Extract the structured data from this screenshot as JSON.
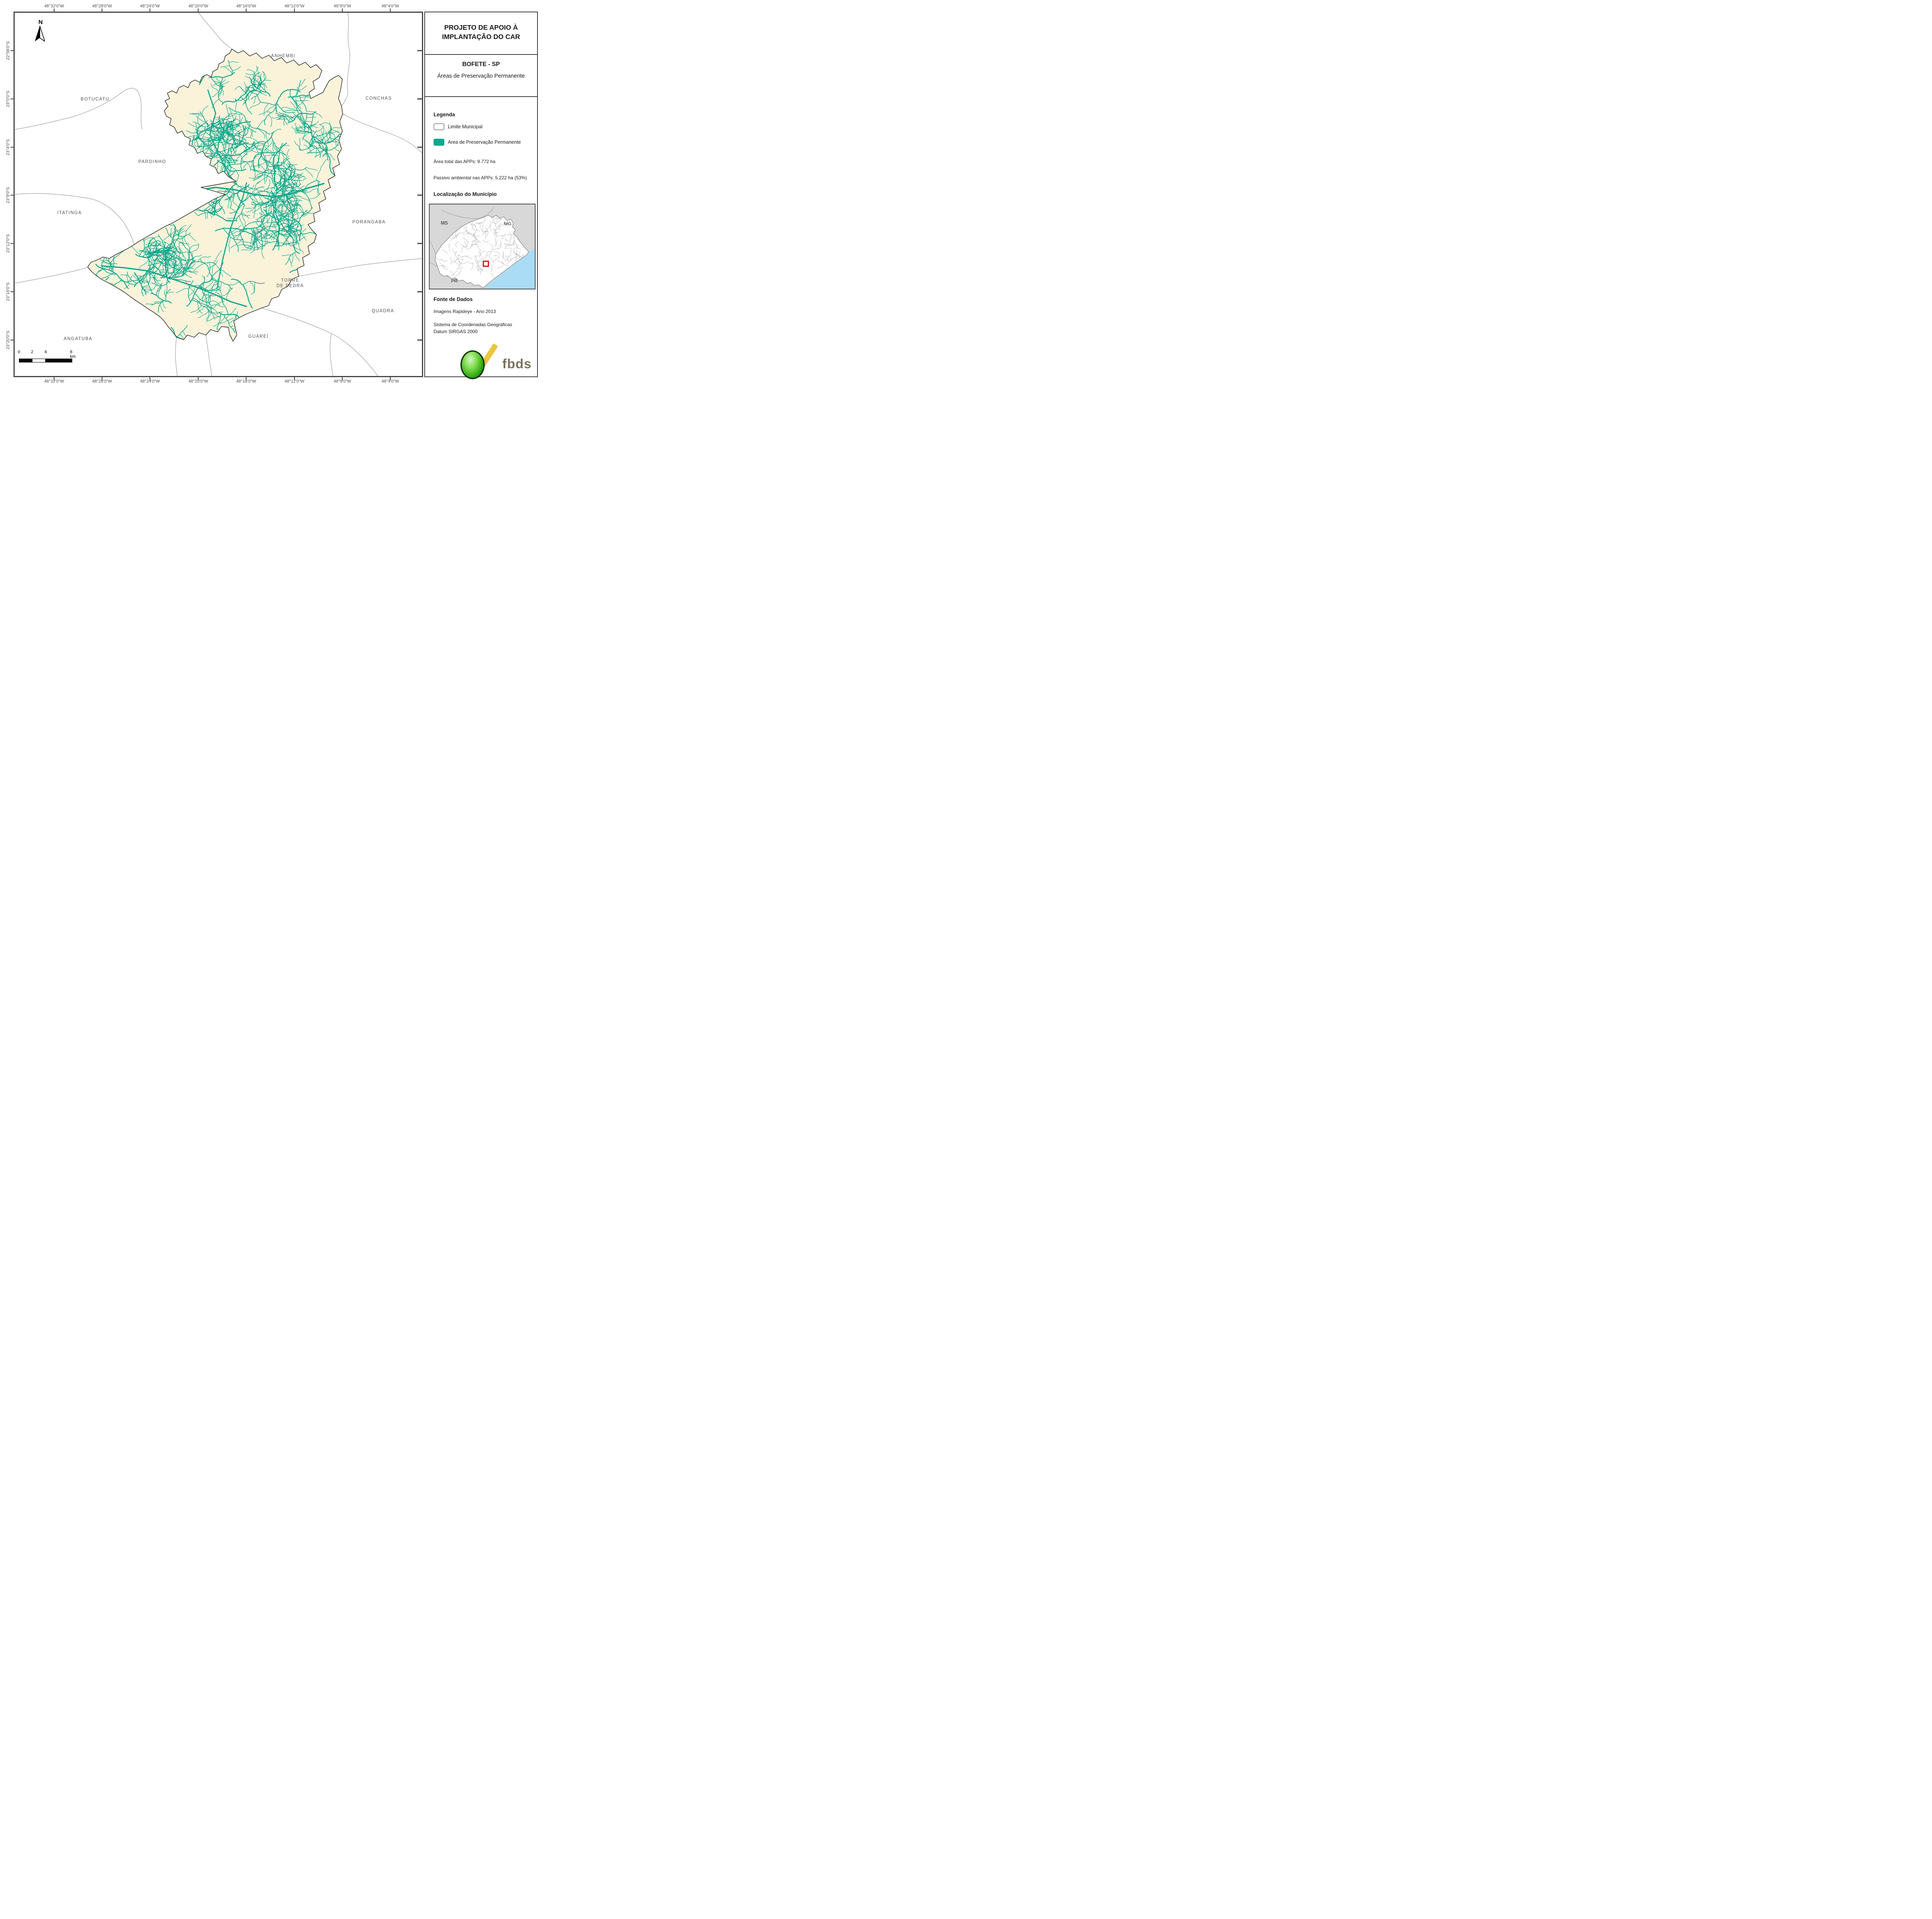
{
  "title": {
    "line1": "PROJETO DE APOIO À",
    "line2": "IMPLANTAÇÃO DO CAR"
  },
  "subtitle": {
    "municipality": "BOFETE - SP",
    "theme": "Áreas de Preservação Permanente"
  },
  "legend": {
    "heading": "Legenda",
    "items": [
      {
        "label": "Limite Municipal",
        "swatch": "white-rounded-outline"
      },
      {
        "label": "Área de Preservação Permanente",
        "swatch": "teal-fill"
      }
    ],
    "stats": [
      "Área total das APPs: 9.772 ha",
      "Passivo ambiental nas APPs: 5.222 ha (53%)"
    ]
  },
  "location": {
    "heading": "Localização do Município",
    "state_labels": {
      "ms": "MS",
      "mg": "MG",
      "pr": "PR"
    }
  },
  "source": {
    "heading": "Fonte de Dados",
    "line1": "Imagens Rapideye - Ano 2013",
    "line2": "Sistema de Coordenadas Geográficas",
    "line3": "Datum SIRGAS 2000"
  },
  "logo": {
    "text": "fbds"
  },
  "north_label": "N",
  "scalebar": {
    "t0": "0",
    "t2": "2",
    "t4": "4",
    "t8": "8 km"
  },
  "axes": {
    "top": [
      "48°32'0\"W",
      "48°28'0\"W",
      "48°24'0\"W",
      "48°20'0\"W",
      "48°16'0\"W",
      "48°12'0\"W",
      "48°8'0\"W",
      "48°4'0\"W"
    ],
    "bottom": [
      "48°32'0\"W",
      "48°28'0\"W",
      "48°24'0\"W",
      "48°20'0\"W",
      "48°16'0\"W",
      "48°12'0\"W",
      "48°8'0\"W",
      "48°4'0\"W"
    ],
    "left": [
      "22°56'0\"S",
      "23°0'0\"S",
      "23°4'0\"S",
      "23°8'0\"S",
      "23°12'0\"S",
      "23°16'0\"S",
      "23°20'0\"S"
    ]
  },
  "map": {
    "labels": [
      {
        "text": "ANHEMBI"
      },
      {
        "text": "CONCHAS"
      },
      {
        "text": "BOTUCATU"
      },
      {
        "text": "PARDINHO"
      },
      {
        "text": "ITATINGA"
      },
      {
        "text": "PORANGABA"
      },
      {
        "text": "TORRE\nDE PEDRA"
      },
      {
        "text": "QUADRA"
      },
      {
        "text": "GUAREÍ"
      },
      {
        "text": "ANGATUBA"
      }
    ]
  },
  "colors": {
    "app_teal": "#0CA78E",
    "municipality_fill": "#FAF3DA",
    "municipal_limit": "#1C1C1C",
    "neighbor_boundary": "#9D9D9D",
    "frame": "#454545",
    "inset_land": "#D8D8D8",
    "inset_ocean": "#ABDCF5",
    "locator_red": "#E8000F",
    "logo_green": "#2CA313",
    "logo_yellow": "#E9C63B",
    "logo_text": "#7B7263"
  }
}
